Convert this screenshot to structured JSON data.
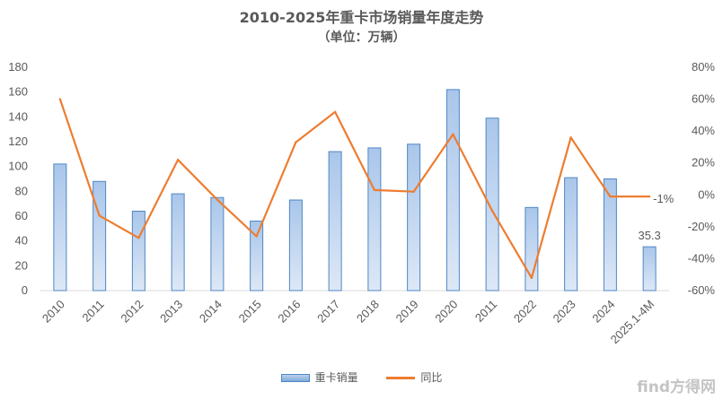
{
  "chart_data": {
    "type": "bar",
    "title": "2010-2025年重卡市场销量年度走势",
    "subtitle": "（单位：万辆）",
    "categories": [
      "2010",
      "2011",
      "2012",
      "2013",
      "2014",
      "2015",
      "2016",
      "2017",
      "2018",
      "2019",
      "2020",
      "2011",
      "2022",
      "2023",
      "2024",
      "2025.1-4M"
    ],
    "series": [
      {
        "name": "重卡销量",
        "type": "bar",
        "axis": "left",
        "color": "#5b9bd5",
        "values": [
          102,
          88,
          64,
          78,
          75,
          56,
          73,
          112,
          115,
          118,
          162,
          139,
          67,
          91,
          90,
          35.3
        ]
      },
      {
        "name": "同比",
        "type": "line",
        "axis": "right",
        "color": "#ed7d31",
        "values": [
          60,
          -13,
          -27,
          22,
          -3,
          -26,
          33,
          52,
          3,
          2,
          38,
          -10,
          -52,
          36,
          -1,
          -1
        ]
      }
    ],
    "y_left": {
      "min": 0,
      "max": 180,
      "ticks": [
        0,
        20,
        40,
        60,
        80,
        100,
        120,
        140,
        160,
        180
      ]
    },
    "y_right": {
      "min": -60,
      "max": 80,
      "ticks": [
        -60,
        -40,
        -20,
        0,
        20,
        40,
        60,
        80
      ],
      "tick_labels": [
        "-60%",
        "-40%",
        "-20%",
        "0%",
        "20%",
        "40%",
        "60%",
        "80%"
      ]
    },
    "data_labels": [
      {
        "series": "重卡销量",
        "index": 15,
        "text": "35.3"
      },
      {
        "series": "同比",
        "index": 15,
        "text": "-1%"
      }
    ],
    "legend_position": "bottom",
    "grid": false
  },
  "watermark": "find方得网"
}
